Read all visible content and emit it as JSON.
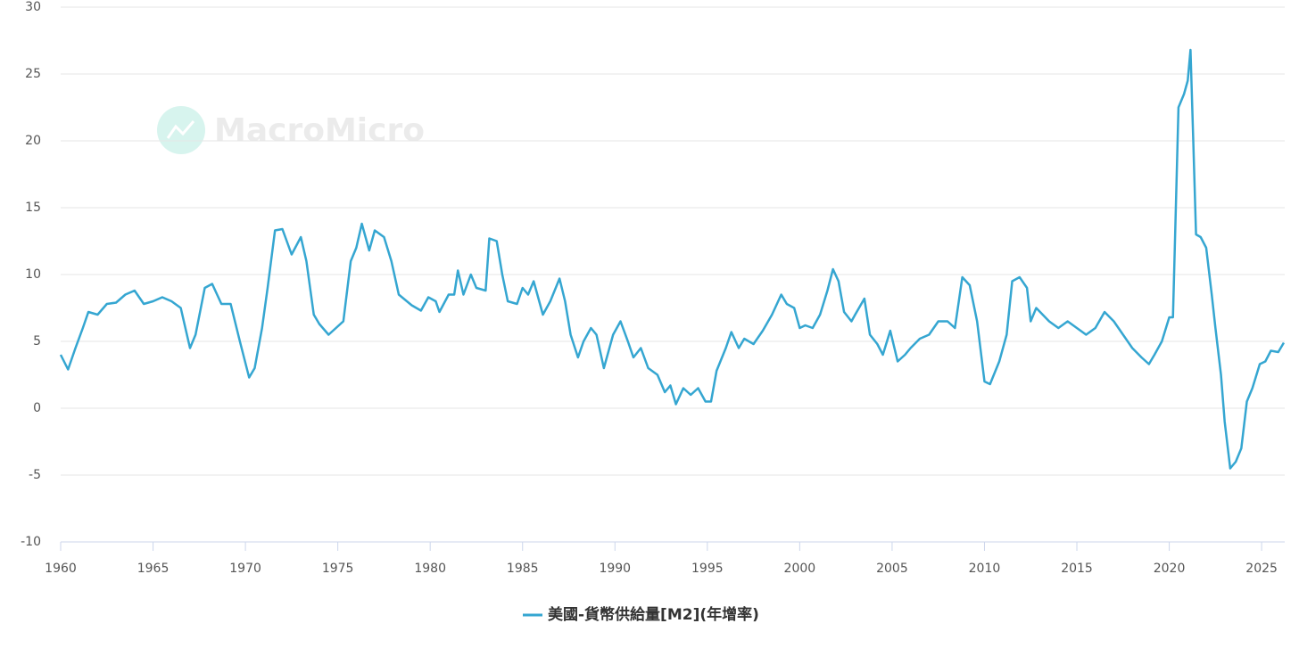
{
  "chart_data": {
    "type": "line",
    "watermark": "MacroMicro",
    "x": [
      1960.0,
      1960.4,
      1960.8,
      1961.2,
      1961.5,
      1962.0,
      1962.5,
      1963.0,
      1963.5,
      1964.0,
      1964.5,
      1965.0,
      1965.5,
      1966.0,
      1966.5,
      1967.0,
      1967.3,
      1967.8,
      1968.2,
      1968.7,
      1969.2,
      1969.7,
      1970.2,
      1970.5,
      1970.9,
      1971.2,
      1971.6,
      1972.0,
      1972.5,
      1973.0,
      1973.3,
      1973.7,
      1974.0,
      1974.5,
      1974.9,
      1975.3,
      1975.7,
      1976.0,
      1976.3,
      1976.7,
      1977.0,
      1977.5,
      1977.9,
      1978.3,
      1979.0,
      1979.5,
      1979.9,
      1980.3,
      1980.5,
      1981.0,
      1981.3,
      1981.5,
      1981.8,
      1982.2,
      1982.5,
      1983.0,
      1983.2,
      1983.6,
      1983.9,
      1984.2,
      1984.7,
      1985.0,
      1985.3,
      1985.6,
      1986.1,
      1986.5,
      1987.0,
      1987.3,
      1987.6,
      1988.0,
      1988.3,
      1988.7,
      1989.0,
      1989.4,
      1989.9,
      1990.3,
      1990.7,
      1991.0,
      1991.4,
      1991.8,
      1992.3,
      1992.7,
      1993.0,
      1993.3,
      1993.7,
      1994.1,
      1994.5,
      1994.9,
      1995.2,
      1995.5,
      1996.0,
      1996.3,
      1996.7,
      1997.0,
      1997.5,
      1998.0,
      1998.5,
      1999.0,
      1999.3,
      1999.7,
      2000.0,
      2000.3,
      2000.7,
      2001.1,
      2001.5,
      2001.8,
      2002.1,
      2002.4,
      2002.8,
      2003.0,
      2003.5,
      2003.8,
      2004.2,
      2004.5,
      2004.9,
      2005.3,
      2005.7,
      2006.0,
      2006.5,
      2007.0,
      2007.5,
      2008.0,
      2008.4,
      2008.8,
      2009.2,
      2009.6,
      2010.0,
      2010.3,
      2010.8,
      2011.2,
      2011.5,
      2011.9,
      2012.3,
      2012.5,
      2012.8,
      2013.5,
      2014.0,
      2014.5,
      2015.0,
      2015.5,
      2016.0,
      2016.5,
      2017.0,
      2017.5,
      2018.0,
      2018.5,
      2018.9,
      2019.2,
      2019.6,
      2020.0,
      2020.2,
      2020.3,
      2020.5,
      2020.8,
      2021.0,
      2021.15,
      2021.3,
      2021.45,
      2021.7,
      2022.0,
      2022.3,
      2022.5,
      2022.8,
      2023.0,
      2023.3,
      2023.6,
      2023.9,
      2024.2,
      2024.5,
      2024.9,
      2025.2,
      2025.5,
      2025.9,
      2026.2
    ],
    "series": [
      {
        "name": "美國-貨幣供給量[M2](年增率)",
        "color": "#35a6d1",
        "values": [
          4.0,
          2.9,
          4.5,
          6.0,
          7.2,
          7.0,
          7.8,
          7.9,
          8.5,
          8.8,
          7.8,
          8.0,
          8.3,
          8.0,
          7.5,
          4.5,
          5.5,
          9.0,
          9.3,
          7.8,
          7.8,
          5.0,
          2.3,
          3.0,
          6.0,
          9.0,
          13.3,
          13.4,
          11.5,
          12.8,
          11.0,
          7.0,
          6.3,
          5.5,
          6.0,
          6.5,
          11.0,
          12.0,
          13.8,
          11.8,
          13.3,
          12.8,
          11.0,
          8.5,
          7.7,
          7.3,
          8.3,
          8.0,
          7.2,
          8.5,
          8.5,
          10.3,
          8.5,
          10.0,
          9.0,
          8.8,
          12.7,
          12.5,
          10.0,
          8.0,
          7.8,
          9.0,
          8.5,
          9.5,
          7.0,
          8.0,
          9.7,
          8.0,
          5.5,
          3.8,
          5.0,
          6.0,
          5.5,
          3.0,
          5.5,
          6.5,
          5.0,
          3.8,
          4.5,
          3.0,
          2.5,
          1.2,
          1.7,
          0.3,
          1.5,
          1.0,
          1.5,
          0.5,
          0.5,
          2.8,
          4.5,
          5.7,
          4.5,
          5.2,
          4.8,
          5.8,
          7.0,
          8.5,
          7.8,
          7.5,
          6.0,
          6.2,
          6.0,
          7.0,
          8.8,
          10.4,
          9.5,
          7.2,
          6.5,
          7.0,
          8.2,
          5.5,
          4.8,
          4.0,
          5.8,
          3.5,
          4.0,
          4.5,
          5.2,
          5.5,
          6.5,
          6.5,
          6.0,
          9.8,
          9.2,
          6.5,
          2.0,
          1.8,
          3.5,
          5.5,
          9.5,
          9.8,
          9.0,
          6.5,
          7.5,
          6.5,
          6.0,
          6.5,
          6.0,
          5.5,
          6.0,
          7.2,
          6.5,
          5.5,
          4.5,
          3.8,
          3.3,
          4.0,
          5.0,
          6.8,
          6.8,
          12.0,
          22.5,
          23.5,
          24.5,
          26.8,
          20.0,
          13.0,
          12.8,
          12.0,
          8.5,
          6.0,
          2.5,
          -1.0,
          -4.5,
          -4.0,
          -3.0,
          0.5,
          1.5,
          3.3,
          3.5,
          4.3,
          4.2,
          4.9
        ]
      }
    ],
    "xlim": [
      1960,
      2026.25
    ],
    "xticks": [
      1960,
      1965,
      1970,
      1975,
      1980,
      1985,
      1990,
      1995,
      2000,
      2005,
      2010,
      2015,
      2020,
      2025
    ],
    "ylim": [
      -10,
      30
    ],
    "yticks": [
      -10,
      -5,
      0,
      5,
      10,
      15,
      20,
      25,
      30
    ],
    "grid": true
  }
}
